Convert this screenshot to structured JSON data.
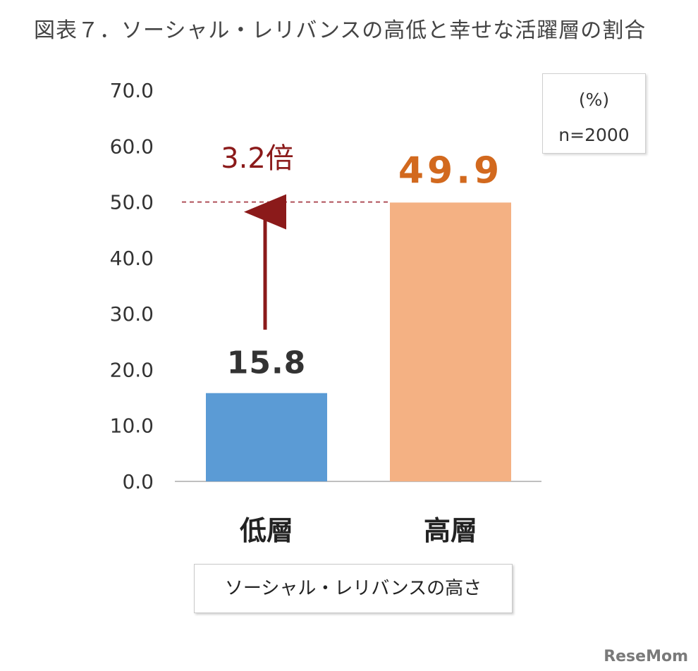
{
  "title": "図表７．ソーシャル・レリバンスの高低と幸せな活躍層の割合",
  "legend": {
    "unit": "(%)",
    "sample": "n=2000"
  },
  "xaxis_label": "ソーシャル・レリバンスの高さ",
  "brand": "ReseMom",
  "annotation": {
    "text": "3.2倍",
    "color": "#8b1a1a"
  },
  "colors": {
    "low": "#5b9bd5",
    "high": "#f4b183",
    "high_label": "#d2691e",
    "axis": "#bfbfbf"
  },
  "chart_data": {
    "type": "bar",
    "categories": [
      "低層",
      "高層"
    ],
    "values": [
      15.8,
      49.9
    ],
    "data_labels": [
      "15.8",
      "49.9"
    ],
    "ylim": [
      0,
      70
    ],
    "yticks": [
      "0.0",
      "10.0",
      "20.0",
      "30.0",
      "40.0",
      "50.0",
      "60.0",
      "70.0"
    ],
    "reference_line": 50.0
  }
}
